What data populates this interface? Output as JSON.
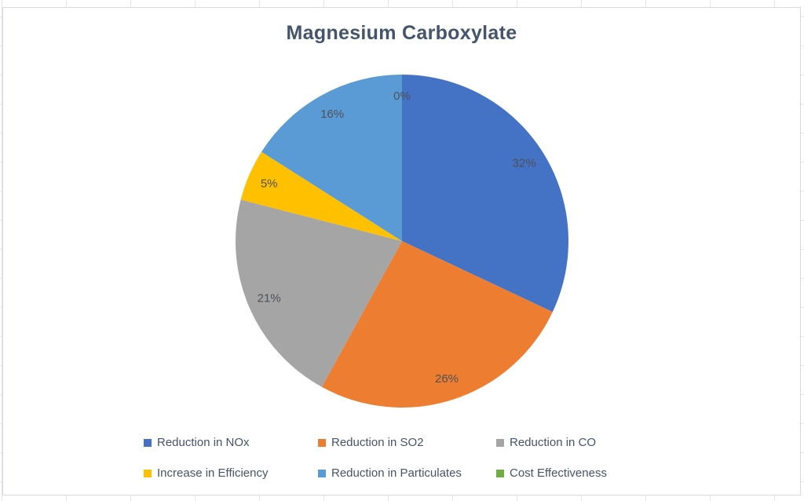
{
  "chart_data": {
    "type": "pie",
    "title": "Magnesium Carboxylate",
    "categories": [
      "Reduction in NOx",
      "Reduction in SO2",
      "Reduction in CO",
      "Increase in Efficiency",
      "Reduction in Particulates",
      "Cost Effectiveness"
    ],
    "values": [
      32,
      26,
      21,
      5,
      16,
      0
    ],
    "labels": [
      "32%",
      "26%",
      "21%",
      "5%",
      "16%",
      "0%"
    ],
    "unit": "percent",
    "colors": [
      "#4472C4",
      "#ED7D31",
      "#A5A5A5",
      "#FFC000",
      "#5B9BD5",
      "#70AD47"
    ],
    "start_angle_deg": 0,
    "direction": "clockwise",
    "label_radius_ratio": 0.87,
    "label_font_size": 15,
    "label_color": "#4c5258",
    "title_color": "#44546A",
    "legend_text_color": "#44546A",
    "legend_position": "bottom",
    "legend_rows": 2,
    "legend_columns": 3
  }
}
